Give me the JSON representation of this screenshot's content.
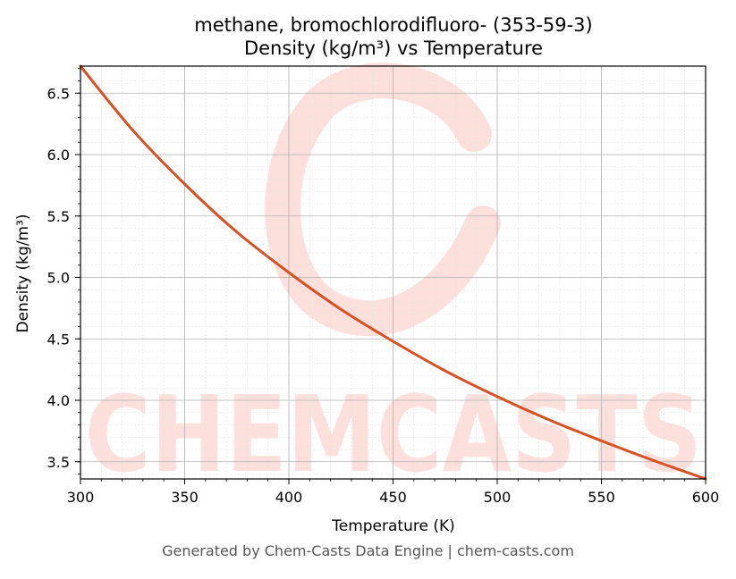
{
  "title_line1": "methane, bromochlorodifluoro- (353-59-3)",
  "title_line2": "Density (kg/m³) vs Temperature",
  "footer": "Generated by Chem-Casts Data Engine | chem-casts.com",
  "watermark_text": "CHEMCASTS",
  "colors": {
    "line": "#d95021",
    "watermark": "#fde0db",
    "grid_major": "#b0b0b0",
    "grid_minor": "#e2e2e2"
  },
  "chart_data": {
    "type": "line",
    "title": "methane, bromochlorodifluoro- (353-59-3)\nDensity (kg/m³) vs Temperature",
    "xlabel": "Temperature (K)",
    "ylabel": "Density (kg/m³)",
    "xlim": [
      300,
      600
    ],
    "ylim": [
      3.36,
      6.72
    ],
    "x_ticks": [
      300,
      350,
      400,
      450,
      500,
      550,
      600
    ],
    "x_tick_labels": [
      "300",
      "350",
      "400",
      "450",
      "500",
      "550",
      "600"
    ],
    "y_ticks": [
      3.5,
      4.0,
      4.5,
      5.0,
      5.5,
      6.0,
      6.5
    ],
    "y_tick_labels": [
      "3.5",
      "4.0",
      "4.5",
      "5.0",
      "5.5",
      "6.0",
      "6.5"
    ],
    "grid": true,
    "minor_grid": true,
    "series": [
      {
        "x": [
          300,
          325,
          350,
          375,
          400,
          425,
          450,
          475,
          500,
          525,
          550,
          575,
          600
        ],
        "y": [
          6.72,
          6.2,
          5.76,
          5.37,
          5.04,
          4.74,
          4.48,
          4.24,
          4.03,
          3.84,
          3.67,
          3.51,
          3.36
        ]
      }
    ]
  }
}
